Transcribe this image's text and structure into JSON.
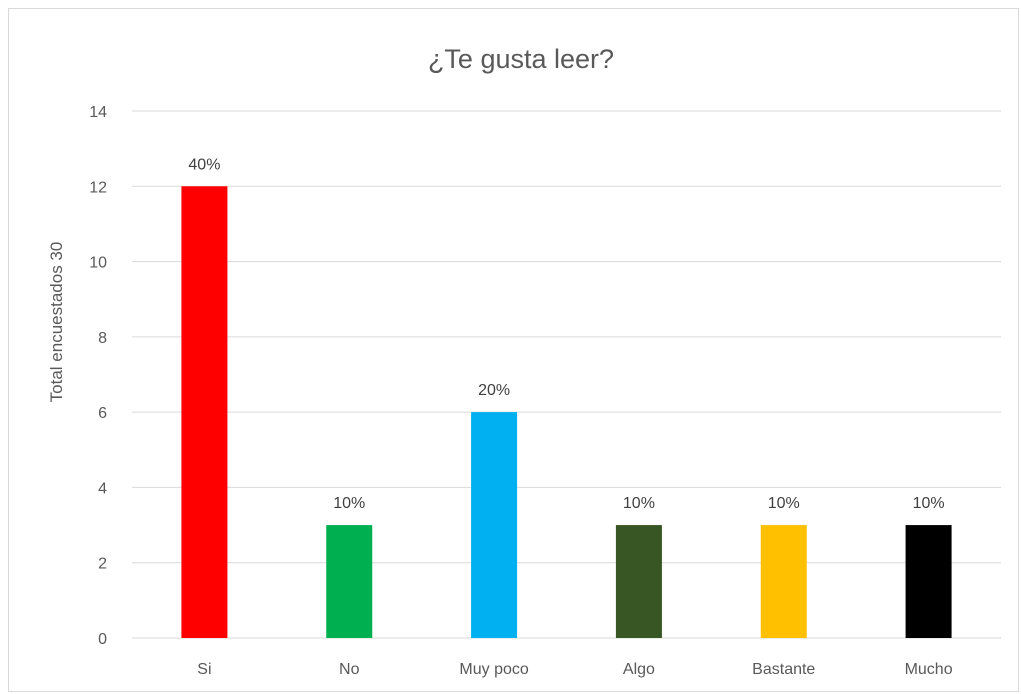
{
  "chart_data": {
    "type": "bar",
    "title": "¿Te gusta leer?",
    "xlabel": "",
    "ylabel": "Total encuestados 30",
    "categories": [
      "Si",
      "No",
      "Muy poco",
      "Algo",
      "Bastante",
      "Mucho"
    ],
    "values": [
      12,
      3,
      6,
      3,
      3,
      3
    ],
    "data_labels": [
      "40%",
      "10%",
      "20%",
      "10%",
      "10%",
      "10%"
    ],
    "colors": [
      "#ff0000",
      "#00b050",
      "#00b0f0",
      "#375623",
      "#ffc000",
      "#000000"
    ],
    "ylim": [
      0,
      14
    ],
    "yticks": [
      0,
      2,
      4,
      6,
      8,
      10,
      12,
      14
    ],
    "grid": true,
    "legend": "none"
  }
}
